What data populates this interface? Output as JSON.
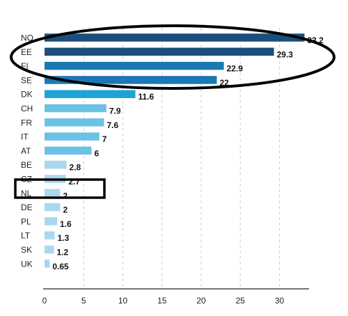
{
  "chart_data": {
    "type": "bar",
    "orientation": "horizontal",
    "title": "",
    "xlabel": "",
    "ylabel": "",
    "categories": [
      "NO",
      "EE",
      "FI",
      "SE",
      "DK",
      "CH",
      "FR",
      "IT",
      "AT",
      "BE",
      "CZ",
      "NL",
      "DE",
      "PL",
      "LT",
      "SK",
      "UK"
    ],
    "values": [
      33.2,
      29.3,
      22.9,
      22,
      11.6,
      7.9,
      7.6,
      7,
      6,
      2.8,
      2.7,
      2,
      2,
      1.6,
      1.3,
      1.2,
      0.65
    ],
    "value_labels": [
      "33.2",
      "29.3",
      "22.9",
      "22",
      "11.6",
      "7.9",
      "7.6",
      "7",
      "6",
      "2.8",
      "2.7",
      "2",
      "2",
      "1.6",
      "1.3",
      "1.2",
      "0.65"
    ],
    "x_ticks": [
      "0",
      "5",
      "10",
      "15",
      "20",
      "25",
      "30"
    ],
    "xlim": [
      0,
      33.6
    ],
    "grid": "vertical dashed",
    "legend": "none",
    "colors": {
      "dark": "#1b4e7c",
      "mid": "#1a78b4",
      "bright": "#1ea3d6",
      "light": "#6cc1e6",
      "pale": "#a8d8ef",
      "annotation": "#000000"
    },
    "annotations": [
      {
        "type": "ellipse",
        "covers": [
          "NO",
          "EE",
          "FI",
          "SE"
        ]
      },
      {
        "type": "rectangle",
        "covers": [
          "CZ"
        ]
      }
    ]
  }
}
